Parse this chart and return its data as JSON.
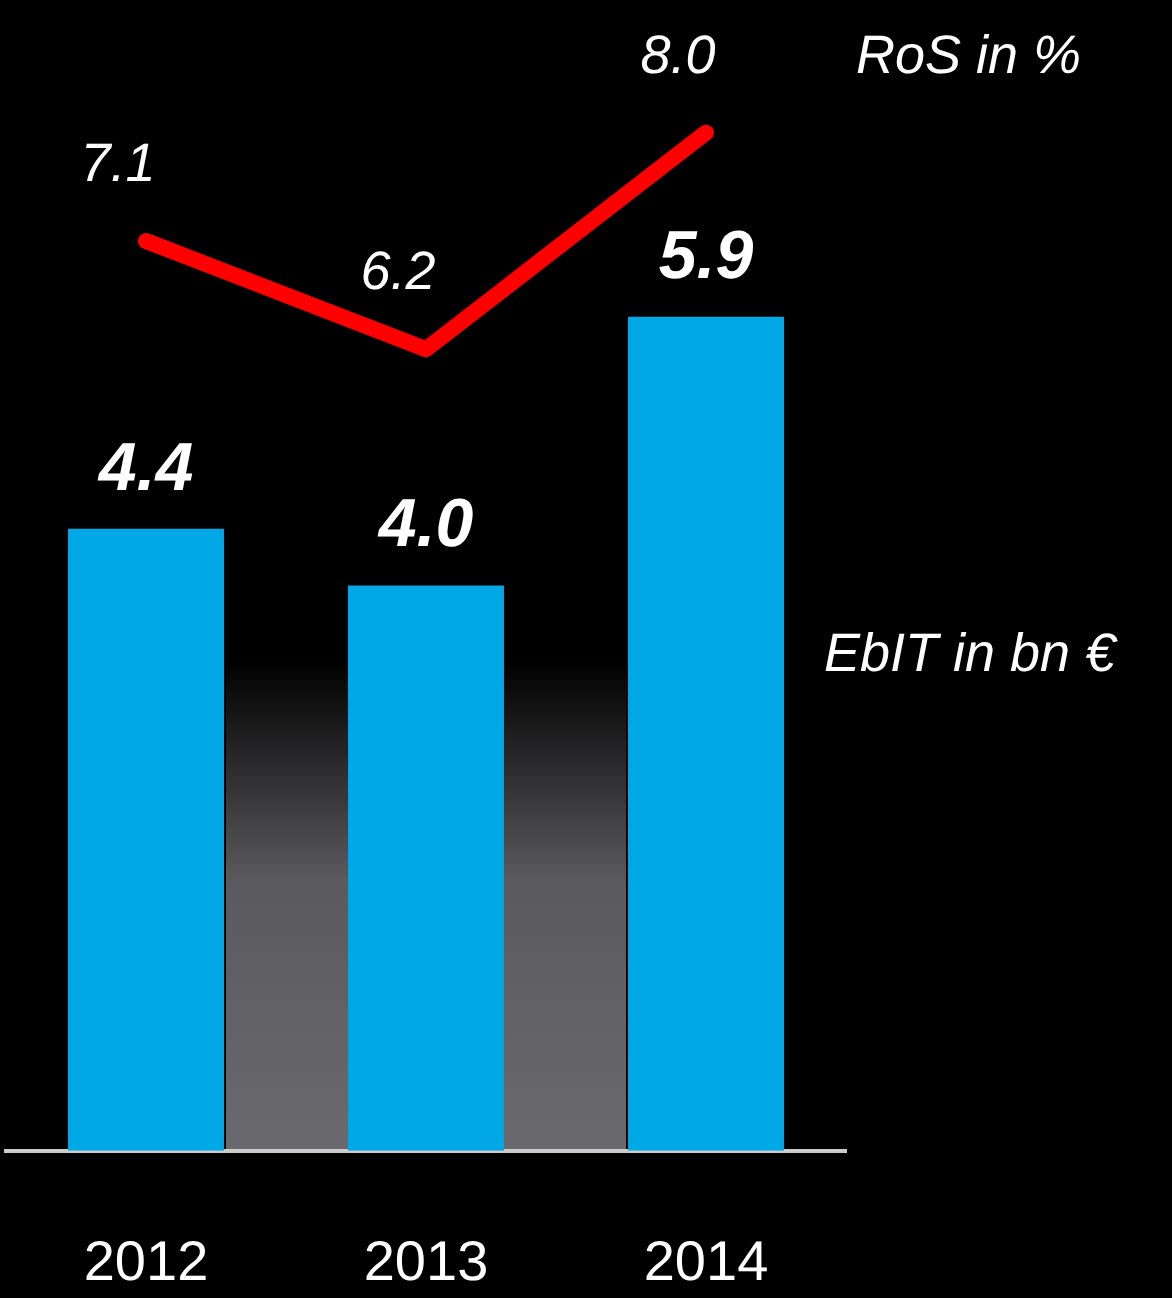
{
  "chart_data": {
    "type": "bar",
    "categories": [
      "2012",
      "2013",
      "2014"
    ],
    "series": [
      {
        "name": "EbIT in bn €",
        "color": "#00a8e6",
        "values": [
          4.4,
          4.0,
          5.9
        ],
        "value_labels": [
          "4.4",
          "4.0",
          "5.9"
        ]
      },
      {
        "name": "RoS in %",
        "type": "line",
        "axis": "y2",
        "color": "#ff0000",
        "values": [
          7.1,
          6.2,
          8.0
        ],
        "value_labels": [
          "7.1",
          "6.2",
          "8.0"
        ]
      }
    ],
    "legend": false,
    "grid": false,
    "tick_labels": "x",
    "marker": "none",
    "line_style": "solid"
  }
}
